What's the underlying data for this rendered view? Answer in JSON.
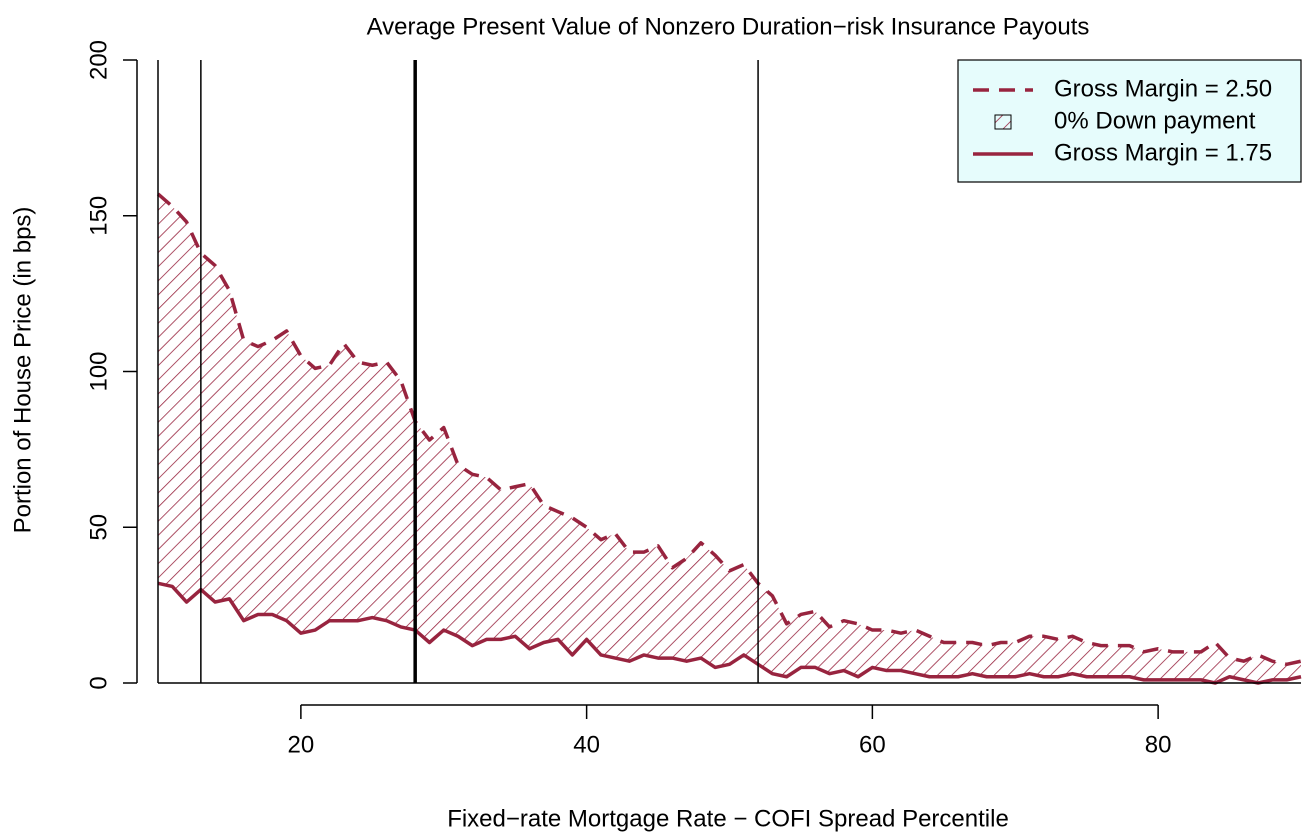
{
  "chart_data": {
    "type": "line",
    "title": "Average Present Value of Nonzero Duration−risk Insurance Payouts",
    "x_label": "Fixed−rate Mortgage Rate − COFI Spread Percentile",
    "y_label": "Portion of House Price (in bps)",
    "x": [
      10,
      11,
      12,
      13,
      14,
      15,
      16,
      17,
      18,
      19,
      20,
      21,
      22,
      23,
      24,
      25,
      26,
      27,
      28,
      29,
      30,
      31,
      32,
      33,
      34,
      35,
      36,
      37,
      38,
      39,
      40,
      41,
      42,
      43,
      44,
      45,
      46,
      47,
      48,
      49,
      50,
      51,
      52,
      53,
      54,
      55,
      56,
      57,
      58,
      59,
      60,
      61,
      62,
      63,
      64,
      65,
      66,
      67,
      68,
      69,
      70,
      71,
      72,
      73,
      74,
      75,
      76,
      77,
      78,
      79,
      80,
      81,
      82,
      83,
      84,
      85,
      86,
      87,
      88,
      89,
      90
    ],
    "series": [
      {
        "name": "Gross Margin = 2.50",
        "color": "#98243f",
        "dash": true,
        "values": [
          157,
          153,
          148,
          138,
          134,
          126,
          110,
          108,
          110,
          113,
          105,
          101,
          102,
          109,
          103,
          102,
          103,
          97,
          84,
          78,
          82,
          70,
          67,
          66,
          62,
          63,
          64,
          57,
          55,
          53,
          50,
          46,
          48,
          42,
          42,
          44,
          37,
          40,
          45,
          41,
          36,
          38,
          32,
          28,
          19,
          22,
          23,
          18,
          20,
          19,
          17,
          17,
          16,
          17,
          15,
          13,
          13,
          13,
          12,
          13,
          13,
          15,
          15,
          14,
          15,
          13,
          12,
          12,
          12,
          10,
          11,
          10,
          10,
          10,
          13,
          8,
          7,
          9,
          7,
          6,
          7
        ]
      },
      {
        "name": "Gross Margin = 1.75",
        "color": "#98243f",
        "dash": false,
        "values": [
          32,
          31,
          26,
          30,
          26,
          27,
          20,
          22,
          22,
          20,
          16,
          17,
          20,
          20,
          20,
          21,
          20,
          18,
          17,
          13,
          17,
          15,
          12,
          14,
          14,
          15,
          11,
          13,
          14,
          9,
          14,
          9,
          8,
          7,
          9,
          8,
          8,
          7,
          8,
          5,
          6,
          9,
          6,
          3,
          2,
          5,
          5,
          3,
          4,
          2,
          5,
          4,
          4,
          3,
          2,
          2,
          2,
          3,
          2,
          2,
          2,
          3,
          2,
          2,
          3,
          2,
          2,
          2,
          2,
          1,
          1,
          1,
          1,
          1,
          0,
          2,
          1,
          0,
          1,
          1,
          2
        ]
      }
    ],
    "band": {
      "name": "0% Down payment",
      "color": "#98243f"
    },
    "vlines": [
      10,
      13,
      28,
      52
    ],
    "vline_widths": [
      1.5,
      1.5,
      3.5,
      1.5
    ],
    "hline": 0,
    "xlim": [
      10,
      90
    ],
    "ylim": [
      0,
      200
    ],
    "xticks": [
      20,
      40,
      60,
      80
    ],
    "yticks": [
      0,
      50,
      100,
      150,
      200
    ],
    "legend": "top-right",
    "legend_bg": "#e6fcfc"
  }
}
